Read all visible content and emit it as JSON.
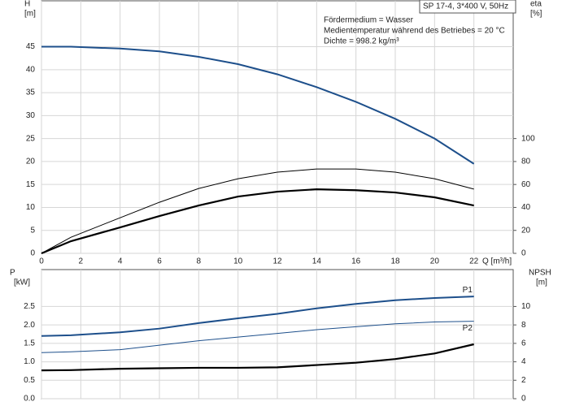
{
  "chart_data": [
    {
      "type": "line",
      "box_label": "SP 17-4, 3*400 V, 50Hz",
      "annotations": [
        "Fördermedium = Wasser",
        "Medientemperatur während des Betriebes = 20 °C",
        "Dichte = 998.2 kg/m³"
      ],
      "ylabel": [
        "H",
        "[m]"
      ],
      "y2label": [
        "eta",
        "[%]"
      ],
      "xlabel": "Q [m³/h]",
      "xlim": [
        0,
        24
      ],
      "xticks": [
        0,
        2,
        4,
        6,
        8,
        10,
        12,
        14,
        16,
        18,
        20,
        22
      ],
      "ylim": [
        0,
        55
      ],
      "yticks": [
        0,
        5,
        10,
        15,
        20,
        25,
        30,
        35,
        40,
        45
      ],
      "y2lim": [
        0,
        220
      ],
      "y2ticks": [
        0,
        20,
        40,
        60,
        80,
        100
      ],
      "grid": true,
      "x": [
        0,
        1.5,
        4,
        6,
        8,
        10,
        12,
        14,
        16,
        18,
        20,
        22
      ],
      "series": [
        {
          "color": "#1d4f8b",
          "width": 2,
          "values": [
            45,
            45,
            44.6,
            44,
            42.8,
            41.2,
            39,
            36.2,
            33,
            29.3,
            25,
            19.5
          ]
        },
        {
          "color": "#000000",
          "width": 1,
          "axis": "y2",
          "values": [
            0,
            14,
            31,
            44.5,
            56.5,
            65,
            70.7,
            73.5,
            73.5,
            70.7,
            65,
            56
          ]
        },
        {
          "color": "#000000",
          "width": 2.2,
          "axis": "y2",
          "values": [
            0,
            10.6,
            22.6,
            32.5,
            41.7,
            49.5,
            53.7,
            55.8,
            55,
            53,
            48.8,
            41.7
          ]
        }
      ]
    },
    {
      "type": "line",
      "ylabel": [
        "P",
        "[kW]"
      ],
      "y2label": [
        "NPSH",
        "[m]"
      ],
      "xlim": [
        0,
        24
      ],
      "xticks": [
        0,
        2,
        4,
        6,
        8,
        10,
        12,
        14,
        16,
        18,
        20,
        22
      ],
      "ylim": [
        0,
        3.5
      ],
      "yticks": [
        {
          "value": 0,
          "label": "0.0"
        },
        0.5,
        {
          "value": 1,
          "label": "1.0"
        },
        1.5,
        {
          "value": 2,
          "label": "2.0"
        },
        2.5
      ],
      "y2lim": [
        0,
        14
      ],
      "y2ticks": [
        0,
        2,
        4,
        6,
        8,
        10
      ],
      "grid": true,
      "x": [
        0,
        1.5,
        4,
        6,
        8,
        10,
        12,
        14,
        16,
        18,
        20,
        22
      ],
      "series": [
        {
          "name": "P1",
          "color": "#1d4f8b",
          "width": 2,
          "values": [
            1.7,
            1.72,
            1.8,
            1.9,
            2.05,
            2.18,
            2.3,
            2.45,
            2.57,
            2.67,
            2.73,
            2.77
          ]
        },
        {
          "name": "P2",
          "color": "#1d4f8b",
          "width": 1,
          "values": [
            1.25,
            1.27,
            1.33,
            1.45,
            1.57,
            1.67,
            1.77,
            1.87,
            1.95,
            2.03,
            2.08,
            2.1
          ]
        },
        {
          "color": "#000000",
          "width": 2.2,
          "axis": "y2",
          "values": [
            3.07,
            3.1,
            3.25,
            3.3,
            3.35,
            3.35,
            3.4,
            3.65,
            3.9,
            4.3,
            4.9,
            5.9
          ]
        }
      ]
    }
  ]
}
